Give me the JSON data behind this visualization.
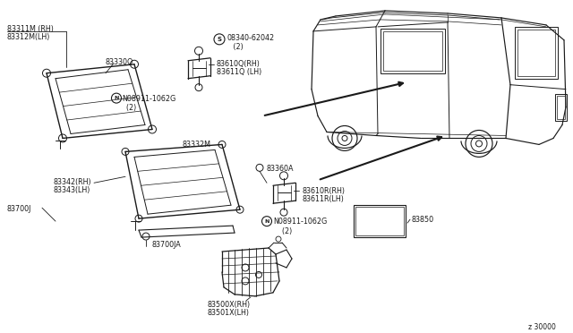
{
  "bg_color": "#ffffff",
  "line_color": "#1a1a1a",
  "fig_code": "z 30000",
  "labels": {
    "83311M_RH": "83311M (RH)",
    "83312M_LH": "83312M(LH)",
    "83330Q": "83330Q",
    "N08911a": "N08911-1062G\n  (2)",
    "08340": "08340-62042\n   (2)",
    "83610Q_RH": "83610Q(RH)",
    "83611Q_LH": "83611Q (LH)",
    "83332M": "83332M",
    "83360A": "83360A",
    "83610R_RH": "83610R(RH)",
    "83611R_LH": "83611R(LH)",
    "N08911b": "N08911-1062G\n    (2)",
    "83342_RH": "83342(RH)",
    "83343_LH": "83343(LH)",
    "83700J": "83700J",
    "83700JA": "83700JA",
    "83500X_RH": "83500X(RH)",
    "83501X_LH": "83501X(LH)",
    "83850": "83850"
  }
}
